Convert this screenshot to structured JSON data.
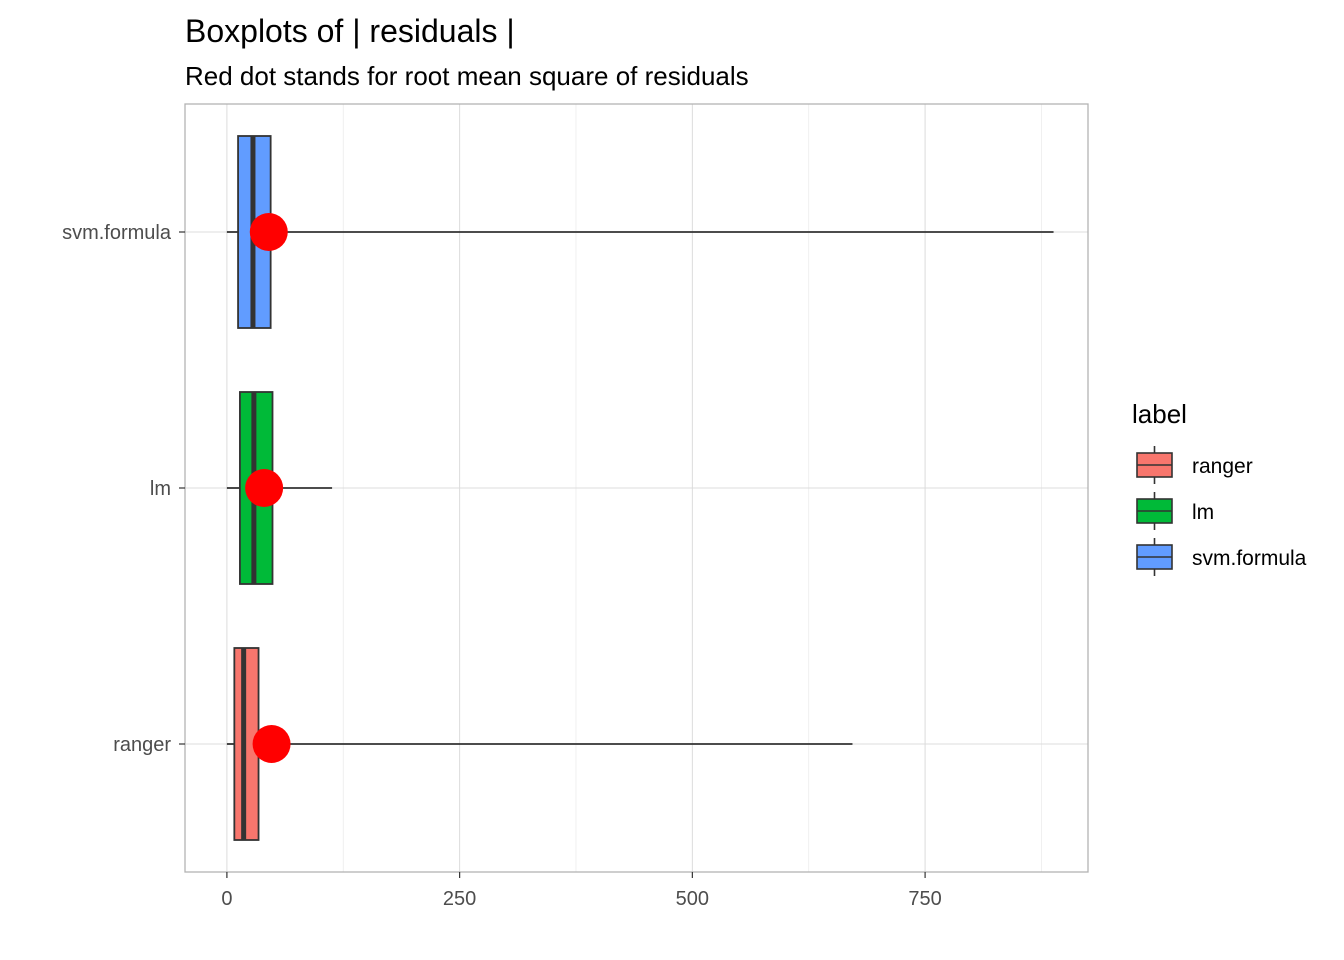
{
  "chart_data": {
    "type": "boxplot",
    "title": "Boxplots of | residuals |",
    "subtitle": "Red dot stands for root mean square of residuals",
    "xlabel": "",
    "ylabel": "",
    "xlim": [
      -45,
      925
    ],
    "x_ticks": [
      0,
      250,
      500,
      750
    ],
    "x_tick_labels": [
      "0",
      "250",
      "500",
      "750"
    ],
    "grid": true,
    "categories": [
      "ranger",
      "lm",
      "svm.formula"
    ],
    "series": [
      {
        "name": "ranger",
        "color": "#F8766D",
        "whisker_low": 0,
        "q1": 8,
        "median": 18,
        "q3": 34,
        "whisker_high": 672,
        "rmse": 48
      },
      {
        "name": "lm",
        "color": "#00BA38",
        "whisker_low": 0,
        "q1": 14,
        "median": 29,
        "q3": 49,
        "whisker_high": 113,
        "rmse": 40
      },
      {
        "name": "svm.formula",
        "color": "#619CFF",
        "whisker_low": 0,
        "q1": 12,
        "median": 28,
        "q3": 47,
        "whisker_high": 888,
        "rmse": 45
      }
    ],
    "rmse_color": "#FF0000",
    "legend": {
      "title": "label",
      "position": "right",
      "entries": [
        "ranger",
        "lm",
        "svm.formula"
      ]
    }
  }
}
